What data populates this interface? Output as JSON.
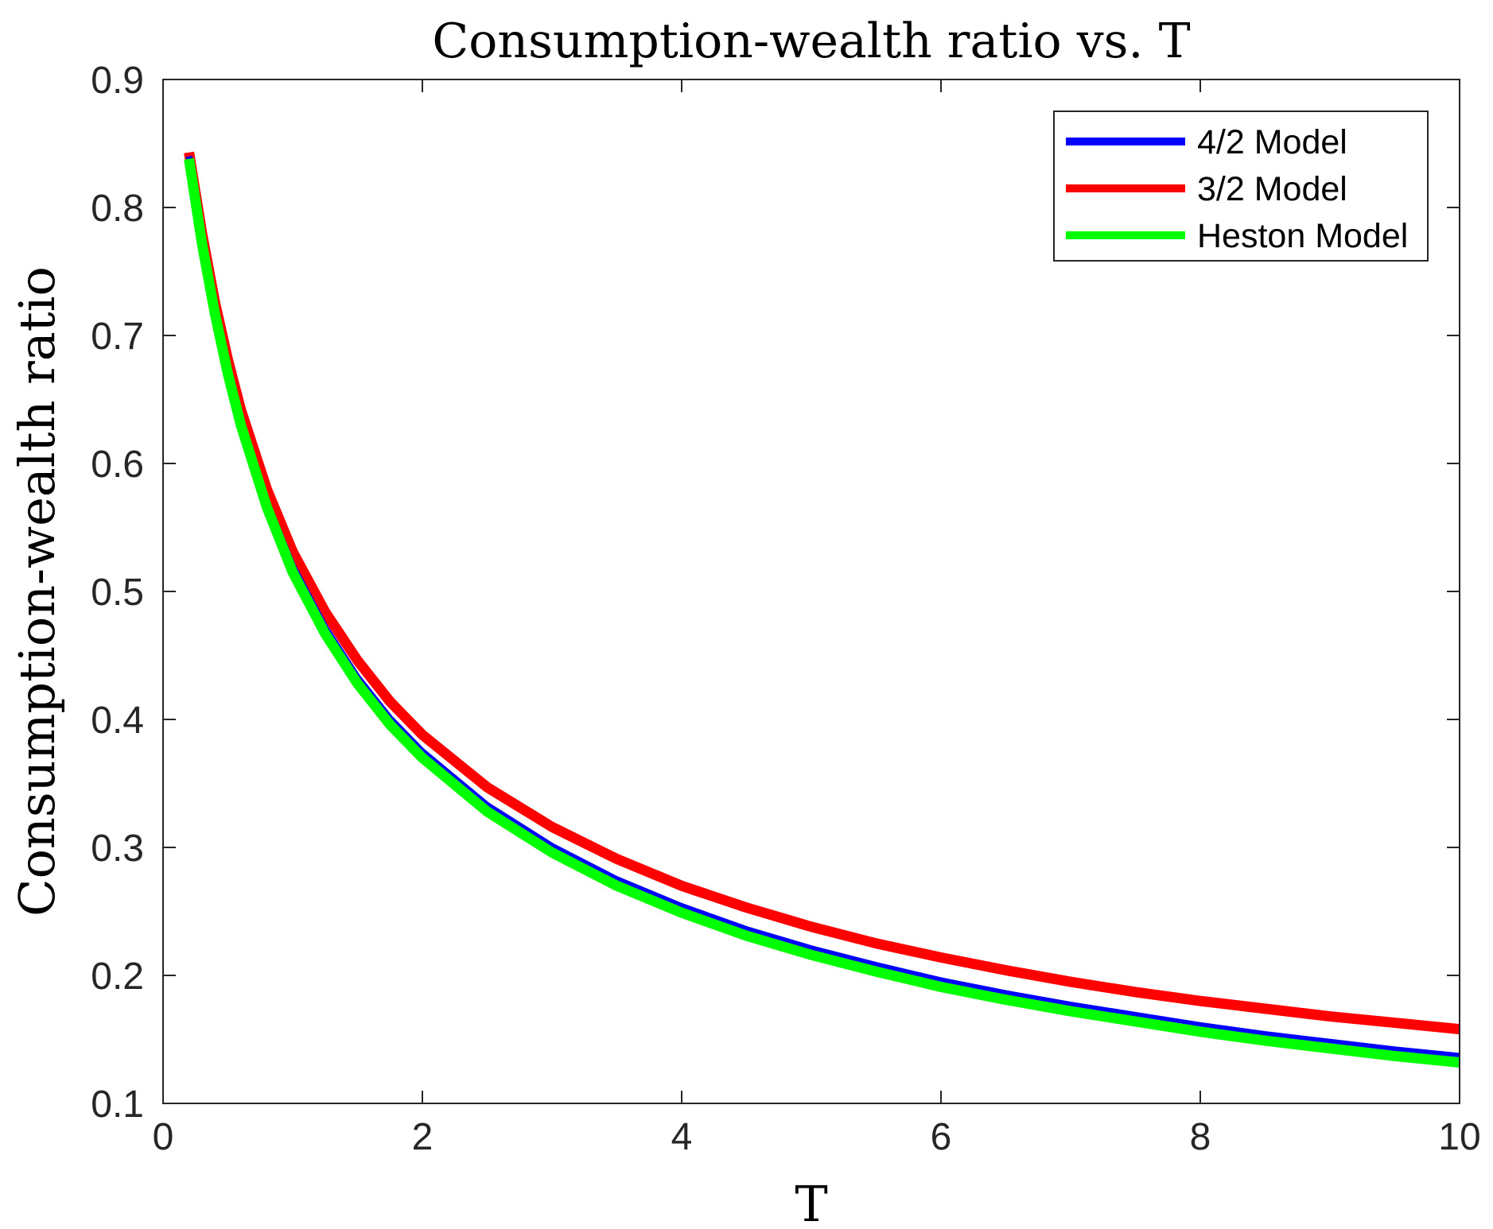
{
  "chart_data": {
    "type": "line",
    "title": "Consumption-wealth ratio vs. T",
    "xlabel": "T",
    "ylabel": "Consumption-wealth ratio",
    "xlim": [
      0,
      10
    ],
    "ylim": [
      0.1,
      0.9
    ],
    "xticks": [
      0,
      2,
      4,
      6,
      8,
      10
    ],
    "xtick_labels": [
      "0",
      "2",
      "4",
      "6",
      "8",
      "10"
    ],
    "yticks": [
      0.1,
      0.2,
      0.3,
      0.4,
      0.5,
      0.6,
      0.7,
      0.8,
      0.9
    ],
    "ytick_labels": [
      "0.1",
      "0.2",
      "0.3",
      "0.4",
      "0.5",
      "0.6",
      "0.7",
      "0.8",
      "0.9"
    ],
    "grid": false,
    "legend_position": "top-right",
    "x": [
      0.2,
      0.3,
      0.4,
      0.5,
      0.6,
      0.8,
      1.0,
      1.25,
      1.5,
      1.75,
      2.0,
      2.5,
      3.0,
      3.5,
      4.0,
      4.5,
      5.0,
      5.5,
      6.0,
      6.5,
      7.0,
      7.5,
      8.0,
      8.5,
      9.0,
      9.5,
      10.0
    ],
    "series": [
      {
        "name": "4/2 Model",
        "color": "#0000ff",
        "values": [
          0.84,
          0.775,
          0.72,
          0.674,
          0.634,
          0.57,
          0.52,
          0.472,
          0.433,
          0.401,
          0.375,
          0.333,
          0.301,
          0.275,
          0.254,
          0.236,
          0.221,
          0.208,
          0.196,
          0.186,
          0.177,
          0.169,
          0.161,
          0.154,
          0.148,
          0.142,
          0.137
        ]
      },
      {
        "name": "3/2 Model",
        "color": "#ff0000",
        "values": [
          0.843,
          0.78,
          0.726,
          0.681,
          0.642,
          0.58,
          0.531,
          0.484,
          0.446,
          0.414,
          0.388,
          0.347,
          0.316,
          0.291,
          0.27,
          0.253,
          0.238,
          0.225,
          0.214,
          0.204,
          0.195,
          0.187,
          0.18,
          0.174,
          0.168,
          0.163,
          0.158
        ]
      },
      {
        "name": "Heston Model",
        "color": "#00ff00",
        "values": [
          0.838,
          0.772,
          0.717,
          0.67,
          0.63,
          0.566,
          0.515,
          0.467,
          0.428,
          0.396,
          0.37,
          0.328,
          0.296,
          0.27,
          0.249,
          0.231,
          0.216,
          0.203,
          0.191,
          0.181,
          0.172,
          0.164,
          0.156,
          0.149,
          0.143,
          0.137,
          0.132
        ]
      }
    ]
  }
}
